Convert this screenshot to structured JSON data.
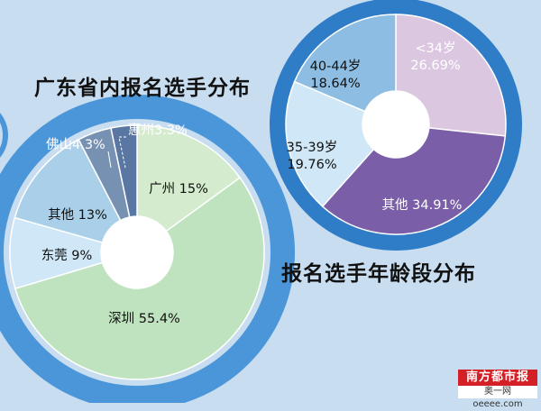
{
  "chart_data": [
    {
      "type": "pie",
      "title": "广东省内报名选手分布",
      "donut": true,
      "categories": [
        "广州",
        "深圳",
        "东莞",
        "其他",
        "佛山",
        "惠州"
      ],
      "values": [
        15,
        55.4,
        9,
        13,
        4.3,
        3.3
      ],
      "labels": [
        "广州 15%",
        "深圳 55.4%",
        "东莞 9%",
        "其他 13%",
        "佛山4.3%",
        "惠州3.3%"
      ],
      "colors": [
        "#d4eccd",
        "#bfe2bf",
        "#cfe7f6",
        "#a9cfe9",
        "#7791b3",
        "#5a77a3"
      ],
      "ring_color": "#4a96d8"
    },
    {
      "type": "pie",
      "title": "报名选手年龄段分布",
      "donut": true,
      "categories": [
        "<34岁",
        "其他",
        "35-39岁",
        "40-44岁"
      ],
      "values": [
        26.69,
        34.91,
        19.76,
        18.64
      ],
      "labels": [
        "<34岁\n26.69%",
        "其他 34.91%",
        "35-39岁\n19.76%",
        "40-44岁\n18.64%"
      ],
      "colors": [
        "#dcc7e0",
        "#7a5fa8",
        "#cfe7f6",
        "#8dbde2"
      ],
      "ring_color": "#2f7cc7"
    }
  ],
  "logo": {
    "name": "南方都市报",
    "site": "奥一网 oeeee.com"
  }
}
